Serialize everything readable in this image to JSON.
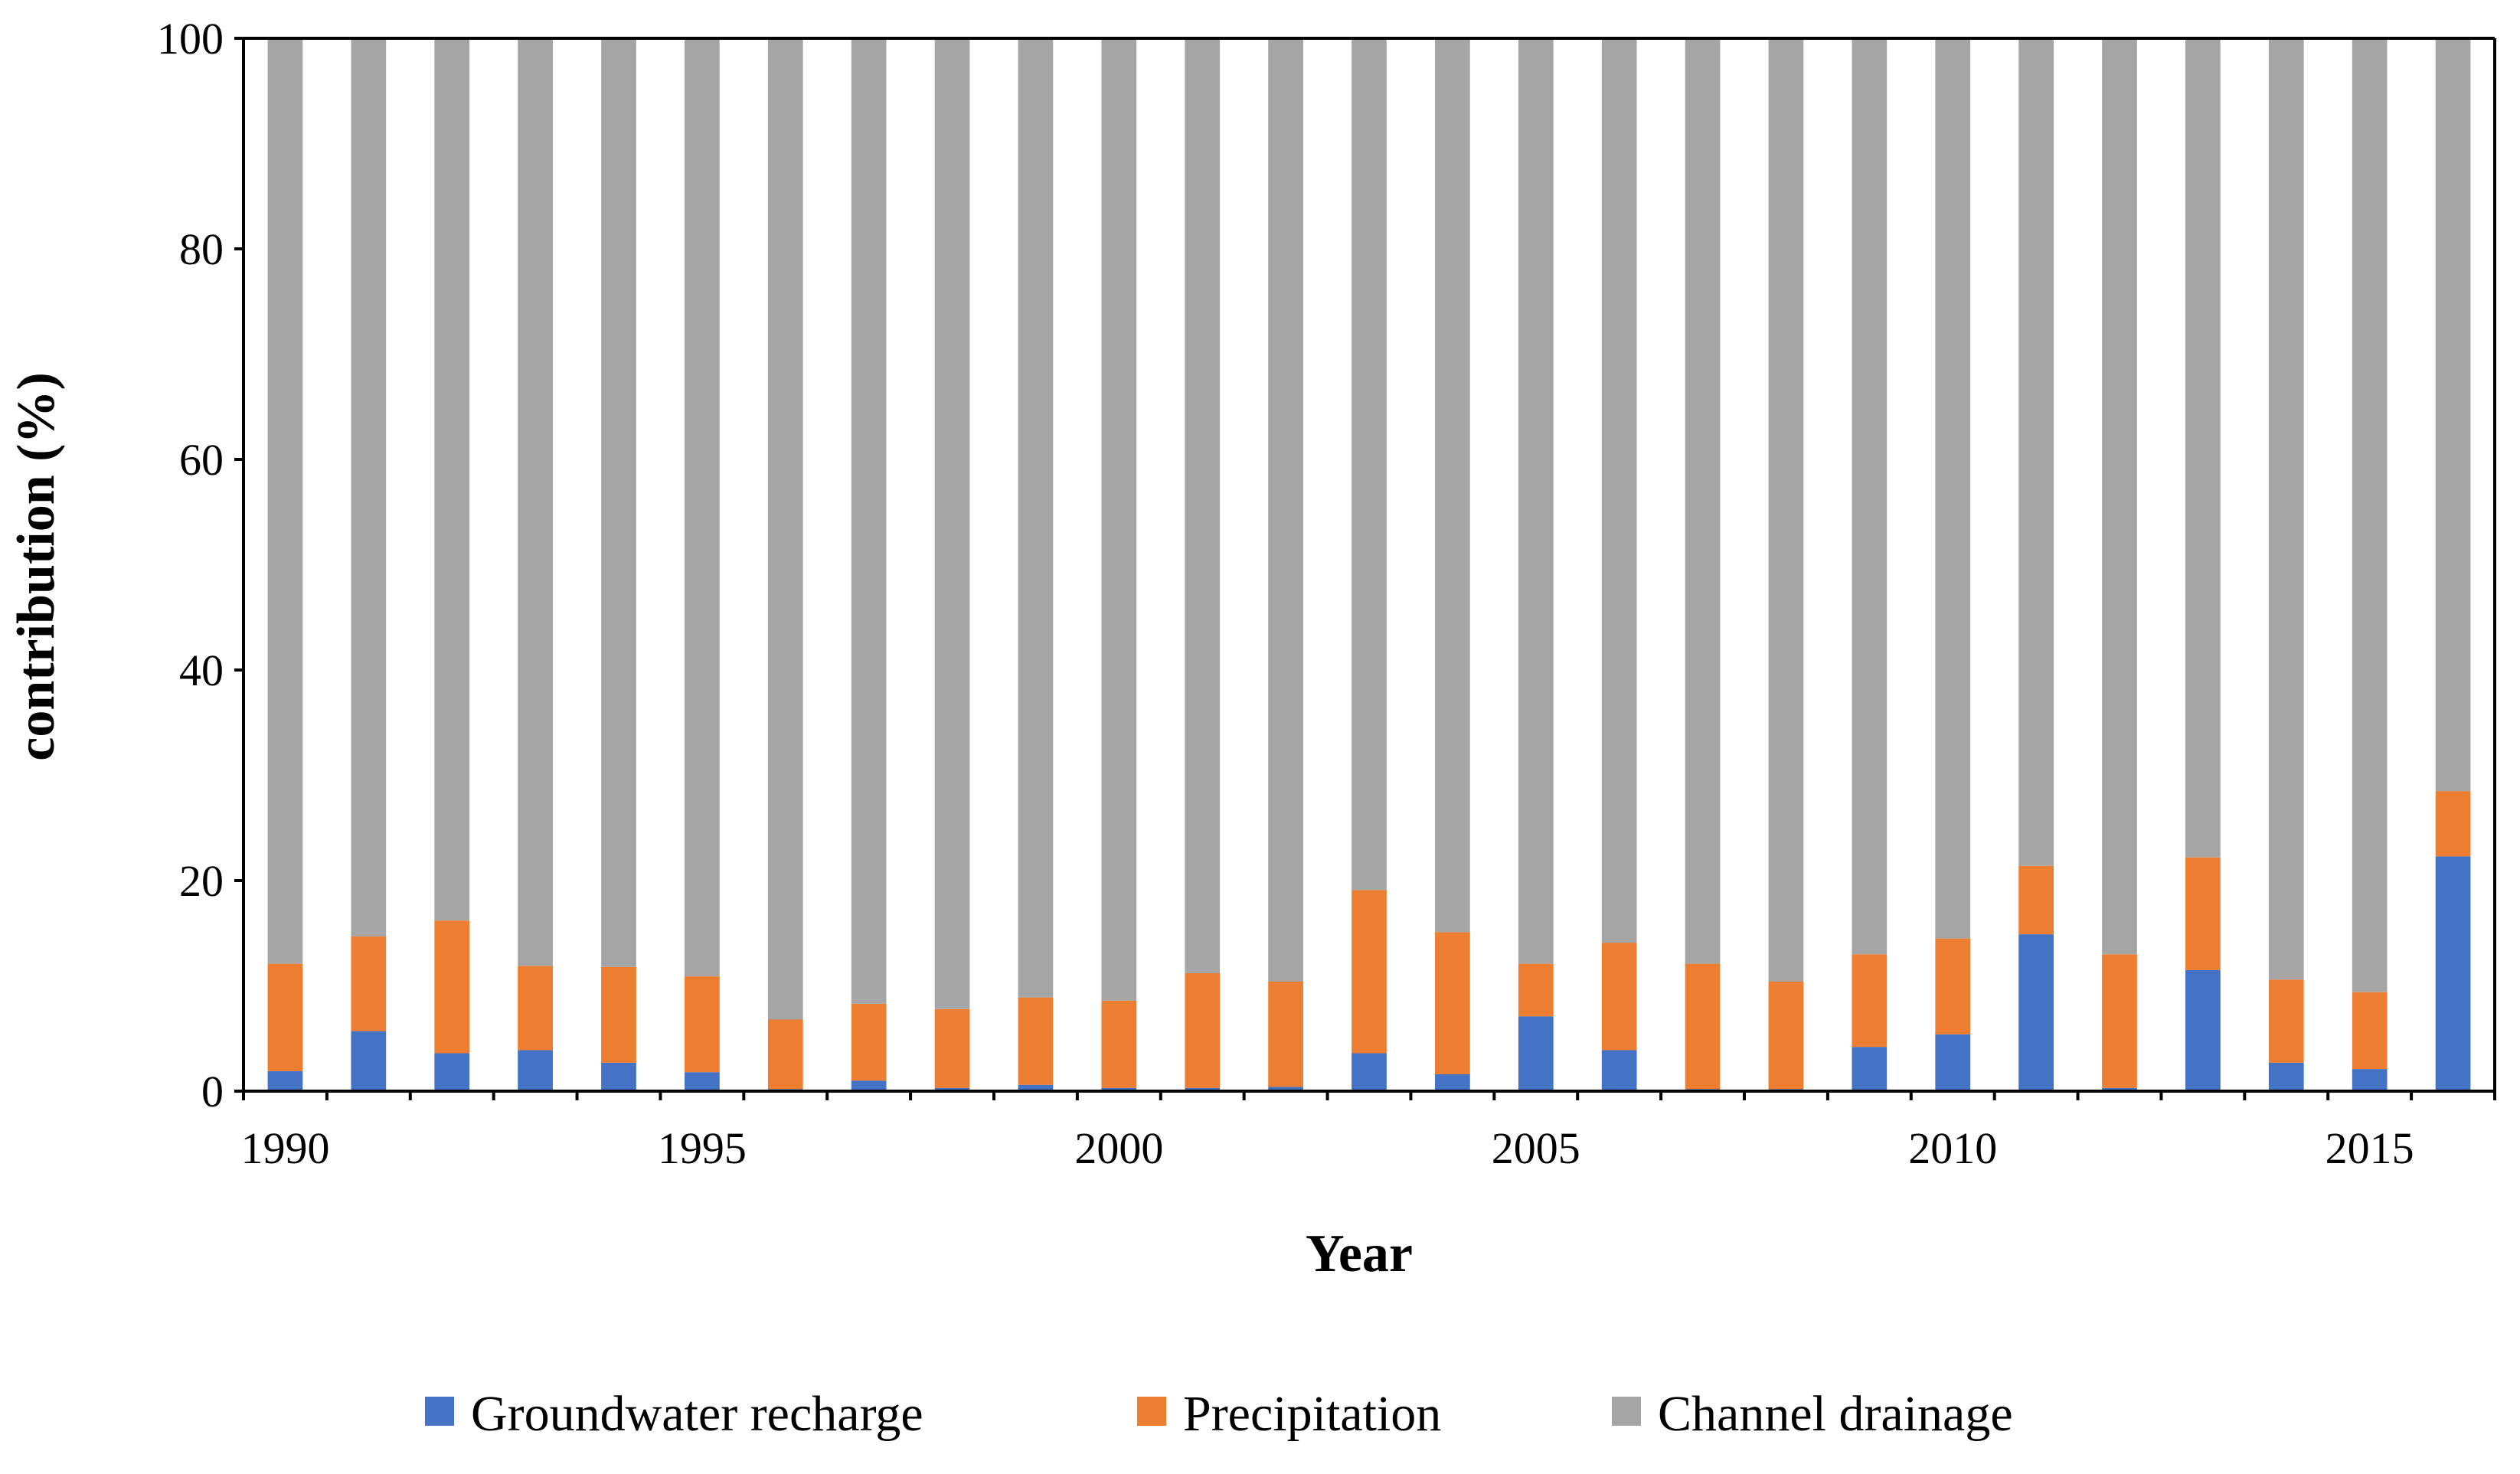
{
  "chart_data": {
    "type": "bar",
    "stacked": true,
    "title": "",
    "xlabel": "Year",
    "ylabel": "contribution (%)",
    "ylim": [
      0,
      100
    ],
    "yticks": [
      "0",
      "20",
      "40",
      "60",
      "80",
      "100"
    ],
    "x_tick_labels": [
      "1990",
      "1995",
      "2000",
      "2005",
      "2010",
      "2015"
    ],
    "categories": [
      "1990",
      "1991",
      "1992",
      "1993",
      "1994",
      "1995",
      "1996",
      "1997",
      "1998",
      "1999",
      "2000",
      "2001",
      "2002",
      "2003",
      "2004",
      "2005",
      "2006",
      "2007",
      "2008",
      "2009",
      "2010",
      "2011",
      "2012",
      "2013",
      "2014",
      "2015",
      "2016"
    ],
    "series": [
      {
        "name": "Groundwater recharge",
        "color": "#4472c4",
        "values": [
          1.9,
          5.7,
          3.6,
          3.9,
          2.7,
          1.8,
          0.2,
          1.0,
          0.3,
          0.6,
          0.3,
          0.3,
          0.4,
          3.6,
          1.6,
          7.1,
          3.9,
          0.2,
          0.2,
          4.2,
          5.4,
          14.9,
          0.3,
          11.5,
          2.7,
          2.1,
          22.3
        ]
      },
      {
        "name": "Precipitation",
        "color": "#ed7d31",
        "values": [
          10.2,
          9.0,
          12.6,
          8.0,
          9.1,
          9.1,
          6.6,
          7.3,
          7.5,
          8.3,
          8.3,
          10.9,
          10.0,
          15.5,
          13.5,
          5.0,
          10.2,
          11.9,
          10.2,
          8.8,
          9.1,
          6.5,
          12.7,
          10.7,
          7.9,
          7.3,
          6.2
        ]
      },
      {
        "name": "Channel drainage",
        "color": "#a5a5a5",
        "values": [
          87.9,
          85.3,
          83.8,
          88.1,
          88.2,
          89.1,
          93.2,
          91.7,
          92.2,
          91.1,
          91.4,
          88.8,
          89.6,
          80.9,
          84.9,
          87.9,
          85.9,
          87.9,
          89.6,
          87.0,
          85.5,
          78.6,
          87.0,
          77.8,
          89.4,
          90.6,
          71.5
        ]
      }
    ],
    "legend_position": "bottom",
    "grid": false
  }
}
